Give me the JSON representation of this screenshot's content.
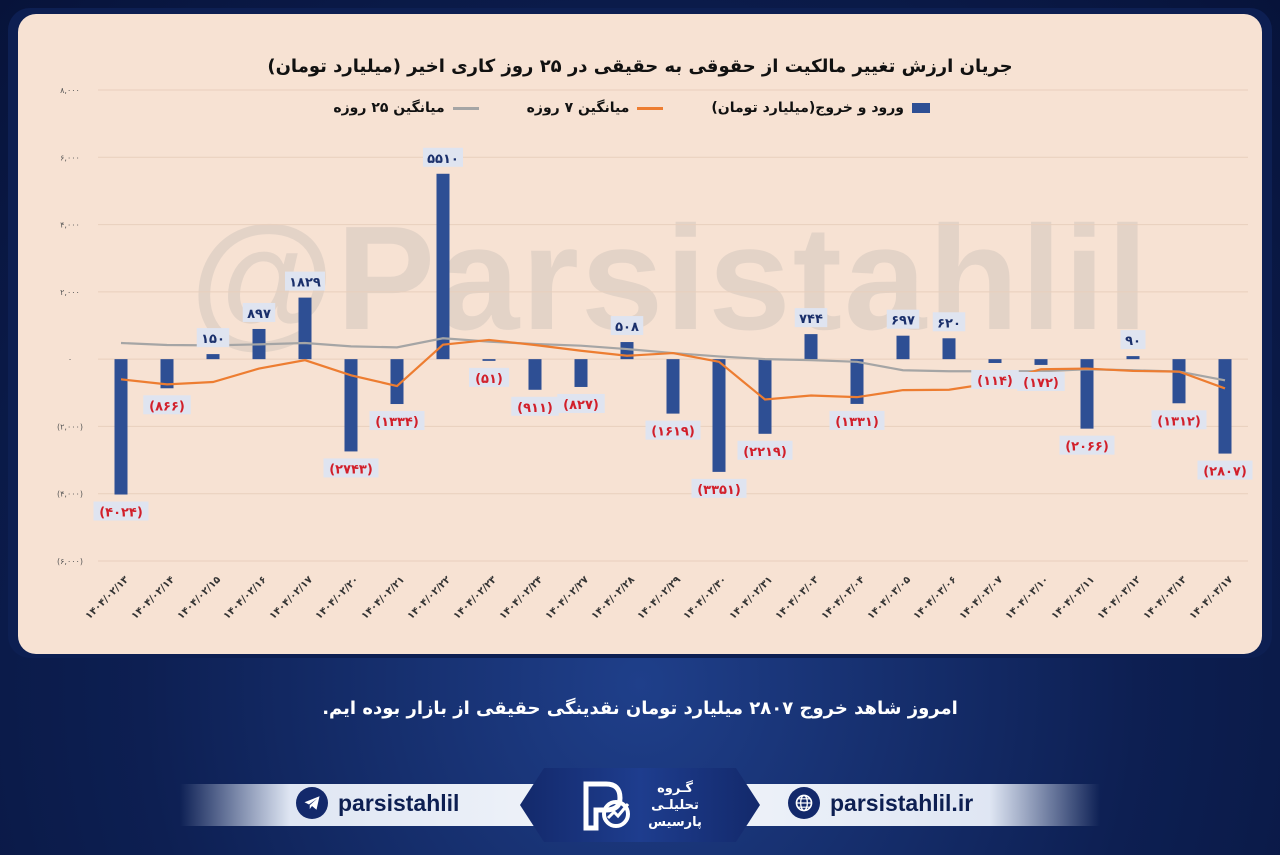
{
  "title": "جریان ارزش تغییر مالکیت از حقوقی به حقیقی در ۲۵ روز کاری اخیر (میلیارد تومان)",
  "watermark": "@Parsistahlil",
  "footer_text": "امروز شاهد خروج ۲۸۰۷ میلیارد تومان نقدینگی حقیقی از بازار بوده ایم.",
  "telegram_handle": "parsistahlil",
  "website": "parsistahlil.ir",
  "logo_lines": [
    "گـروه",
    "تحلیلـی",
    "پارسیس"
  ],
  "colors": {
    "bar": "#2e4f94",
    "ma7": "#ed7d31",
    "ma25": "#a5a5a5",
    "positive_label": "#1a2f6b",
    "negative_label": "#d21f2a",
    "label_bg": "#dfe4f0"
  },
  "icons": {
    "telegram": "telegram-icon",
    "website": "globe-icon"
  },
  "chart_data": {
    "type": "bar",
    "title": "جریان ارزش تغییر مالکیت از حقوقی به حقیقی در ۲۵ روز کاری اخیر (میلیارد تومان)",
    "ylim": [
      -6000,
      8000
    ],
    "yticks": [
      8000,
      6000,
      4000,
      2000,
      0,
      -2000,
      -4000,
      -6000
    ],
    "ytick_labels": [
      "۸,۰۰۰",
      "۶,۰۰۰",
      "۴,۰۰۰",
      "۲,۰۰۰",
      "۰",
      "(۲,۰۰۰)",
      "(۴,۰۰۰)",
      "(۶,۰۰۰)"
    ],
    "grid": true,
    "legend_position": "top",
    "categories": [
      "۱۴۰۴/۰۲/۱۳",
      "۱۴۰۴/۰۲/۱۴",
      "۱۴۰۴/۰۲/۱۵",
      "۱۴۰۴/۰۲/۱۶",
      "۱۴۰۴/۰۲/۱۷",
      "۱۴۰۴/۰۲/۲۰",
      "۱۴۰۴/۰۲/۲۱",
      "۱۴۰۴/۰۲/۲۲",
      "۱۴۰۴/۰۲/۲۳",
      "۱۴۰۴/۰۲/۲۴",
      "۱۴۰۴/۰۲/۲۷",
      "۱۴۰۴/۰۲/۲۸",
      "۱۴۰۴/۰۲/۲۹",
      "۱۴۰۴/۰۲/۳۰",
      "۱۴۰۴/۰۲/۳۱",
      "۱۴۰۴/۰۳/۰۳",
      "۱۴۰۴/۰۳/۰۴",
      "۱۴۰۴/۰۳/۰۵",
      "۱۴۰۴/۰۳/۰۶",
      "۱۴۰۴/۰۳/۰۷",
      "۱۴۰۴/۰۳/۱۰",
      "۱۴۰۴/۰۳/۱۱",
      "۱۴۰۴/۰۳/۱۲",
      "۱۴۰۴/۰۳/۱۳",
      "۱۴۰۴/۰۳/۱۷"
    ],
    "series": [
      {
        "name": "ورود و خروج(میلیارد تومان)",
        "kind": "bar",
        "values": [
          -4024,
          -866,
          150,
          897,
          1829,
          -2743,
          -1334,
          5510,
          -51,
          -911,
          -827,
          508,
          -1619,
          -3351,
          -2219,
          744,
          -1331,
          697,
          620,
          -114,
          -172,
          -2066,
          90,
          -1312,
          -2807
        ],
        "labels": [
          "(۴۰۲۴)",
          "(۸۶۶)",
          "۱۵۰",
          "۸۹۷",
          "۱۸۲۹",
          "(۲۷۴۳)",
          "(۱۳۳۴)",
          "۵۵۱۰",
          "(۵۱)",
          "(۹۱۱)",
          "(۸۲۷)",
          "۵۰۸",
          "(۱۶۱۹)",
          "(۳۳۵۱)",
          "(۲۲۱۹)",
          "۷۴۴",
          "(۱۳۳۱)",
          "۶۹۷",
          "۶۲۰",
          "(۱۱۴)",
          "(۱۷۲)",
          "(۲۰۶۶)",
          "۹۰",
          "(۱۳۱۲)",
          "(۲۸۰۷)"
        ]
      },
      {
        "name": "میانگین ۷ روزه",
        "kind": "line",
        "values": [
          -600,
          -750,
          -680,
          -280,
          -30,
          -480,
          -800,
          430,
          570,
          420,
          250,
          100,
          180,
          -80,
          -1200,
          -1080,
          -1130,
          -920,
          -910,
          -700,
          -300,
          -280,
          -350,
          -370,
          -870
        ]
      },
      {
        "name": "میانگین ۲۵ روزه",
        "kind": "line",
        "values": [
          480,
          420,
          410,
          440,
          480,
          380,
          350,
          620,
          520,
          450,
          400,
          300,
          180,
          80,
          0,
          -30,
          -80,
          -330,
          -360,
          -360,
          -360,
          -300,
          -330,
          -370,
          -630
        ]
      }
    ]
  }
}
